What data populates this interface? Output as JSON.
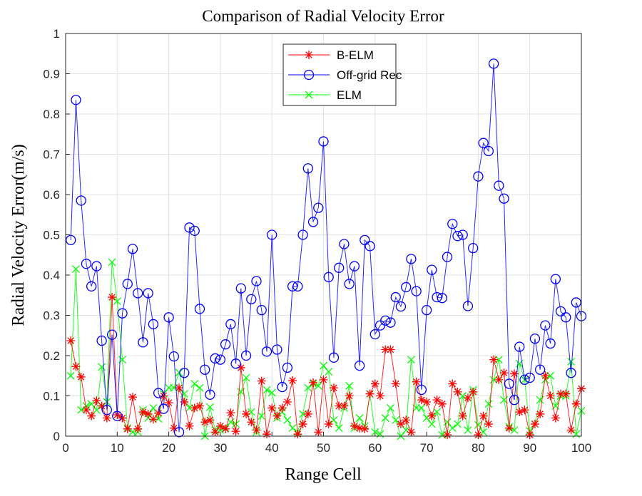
{
  "chart_data": {
    "type": "line",
    "title": "Comparison of Radial Velocity Error",
    "xlabel": "Range Cell",
    "ylabel": "Radial Velocity Error(m/s)",
    "xlim": [
      0,
      100
    ],
    "ylim": [
      0,
      1
    ],
    "grid": true,
    "legend_position": "top-center",
    "xticks": [
      "0",
      "10",
      "20",
      "30",
      "40",
      "50",
      "60",
      "70",
      "80",
      "90",
      "100"
    ],
    "yticks": [
      "0",
      "0.1",
      "0.2",
      "0.3",
      "0.4",
      "0.5",
      "0.6",
      "0.7",
      "0.8",
      "0.9",
      "1"
    ],
    "x": [
      1,
      2,
      3,
      4,
      5,
      6,
      7,
      8,
      9,
      10,
      11,
      12,
      13,
      14,
      15,
      16,
      17,
      18,
      19,
      20,
      21,
      22,
      23,
      24,
      25,
      26,
      27,
      28,
      29,
      30,
      31,
      32,
      33,
      34,
      35,
      36,
      37,
      38,
      39,
      40,
      41,
      42,
      43,
      44,
      45,
      46,
      47,
      48,
      49,
      50,
      51,
      52,
      53,
      54,
      55,
      56,
      57,
      58,
      59,
      60,
      61,
      62,
      63,
      64,
      65,
      66,
      67,
      68,
      69,
      70,
      71,
      72,
      73,
      74,
      75,
      76,
      77,
      78,
      79,
      80,
      81,
      82,
      83,
      84,
      85,
      86,
      87,
      88,
      89,
      90,
      91,
      92,
      93,
      94,
      95,
      96,
      97,
      98,
      99,
      100
    ],
    "series": [
      {
        "name": "B-ELM",
        "color": "#ff0000",
        "marker": "star",
        "values": [
          0.237,
          0.173,
          0.147,
          0.065,
          0.05,
          0.088,
          0.075,
          0.045,
          0.345,
          0.053,
          0.045,
          0.018,
          0.097,
          0.018,
          0.06,
          0.055,
          0.042,
          0.057,
          0.1,
          0.083,
          0.02,
          0.12,
          0.085,
          0.025,
          0.07,
          0.075,
          0.035,
          0.04,
          0.01,
          0.025,
          0.018,
          0.058,
          0.012,
          0.17,
          0.055,
          0.035,
          0.015,
          0.137,
          0.005,
          0.07,
          0.05,
          0.07,
          0.085,
          0.138,
          0.005,
          0.03,
          0.055,
          0.133,
          0.01,
          0.14,
          0.03,
          0.12,
          0.075,
          0.075,
          0.1,
          0.025,
          0.02,
          0.018,
          0.105,
          0.13,
          0.1,
          0.215,
          0.215,
          0.13,
          0.03,
          0.04,
          0.01,
          0.135,
          0.09,
          0.085,
          0.05,
          0.09,
          0.08,
          0.003,
          0.13,
          0.11,
          0.05,
          0.095,
          0.11,
          0.003,
          0.05,
          0.03,
          0.19,
          0.14,
          0.157,
          0.02,
          0.155,
          0.06,
          0.065,
          0.003,
          0.03,
          0.055,
          0.15,
          0.1,
          0.045,
          0.105,
          0.105,
          0.015,
          0.08,
          0.118
        ]
      },
      {
        "name": "Off-grid Rec",
        "color": "#0000ff",
        "marker": "circle",
        "values": [
          0.487,
          0.835,
          0.585,
          0.428,
          0.372,
          0.422,
          0.237,
          0.065,
          0.252,
          0.05,
          0.305,
          0.378,
          0.465,
          0.355,
          0.233,
          0.355,
          0.278,
          0.107,
          0.068,
          0.295,
          0.198,
          0.01,
          0.157,
          0.518,
          0.51,
          0.316,
          0.165,
          0.103,
          0.193,
          0.19,
          0.228,
          0.278,
          0.18,
          0.367,
          0.2,
          0.34,
          0.385,
          0.313,
          0.21,
          0.5,
          0.215,
          0.122,
          0.17,
          0.372,
          0.372,
          0.5,
          0.665,
          0.532,
          0.567,
          0.732,
          0.395,
          0.195,
          0.418,
          0.477,
          0.378,
          0.422,
          0.175,
          0.487,
          0.472,
          0.253,
          0.275,
          0.287,
          0.282,
          0.345,
          0.322,
          0.37,
          0.44,
          0.36,
          0.115,
          0.313,
          0.413,
          0.345,
          0.343,
          0.445,
          0.527,
          0.497,
          0.5,
          0.323,
          0.467,
          0.645,
          0.728,
          0.708,
          0.925,
          0.622,
          0.59,
          0.13,
          0.09,
          0.222,
          0.14,
          0.145,
          0.242,
          0.165,
          0.275,
          0.23,
          0.39,
          0.31,
          0.295,
          0.157,
          0.332,
          0.298
        ]
      },
      {
        "name": "ELM",
        "color": "#00ff00",
        "marker": "x",
        "values": [
          0.15,
          0.415,
          0.065,
          0.075,
          0.08,
          0.065,
          0.172,
          0.085,
          0.432,
          0.335,
          0.19,
          0.02,
          0.01,
          0.01,
          0.065,
          0.045,
          0.07,
          0.043,
          0.105,
          0.12,
          0.12,
          0.158,
          0.105,
          0.07,
          0.13,
          0.12,
          0.0,
          0.072,
          0.015,
          0.015,
          0.02,
          0.035,
          0.03,
          0.11,
          0.145,
          0.06,
          0.01,
          0.05,
          0.115,
          0.108,
          0.045,
          0.06,
          0.04,
          0.02,
          0.01,
          0.055,
          0.12,
          0.13,
          0.125,
          0.175,
          0.16,
          0.04,
          0.02,
          0.07,
          0.125,
          0.02,
          0.045,
          0.025,
          0.105,
          0.01,
          0.005,
          0.045,
          0.07,
          0.04,
          0.0,
          0.015,
          0.19,
          0.07,
          0.07,
          0.045,
          0.03,
          0.06,
          0.003,
          0.035,
          0.02,
          0.03,
          0.1,
          0.015,
          0.115,
          0.028,
          0.01,
          0.08,
          0.14,
          0.19,
          0.09,
          0.023,
          0.015,
          0.18,
          0.14,
          0.013,
          0.03,
          0.09,
          0.14,
          0.15,
          0.075,
          0.1,
          0.1,
          0.185,
          0.005,
          0.063
        ]
      }
    ]
  }
}
